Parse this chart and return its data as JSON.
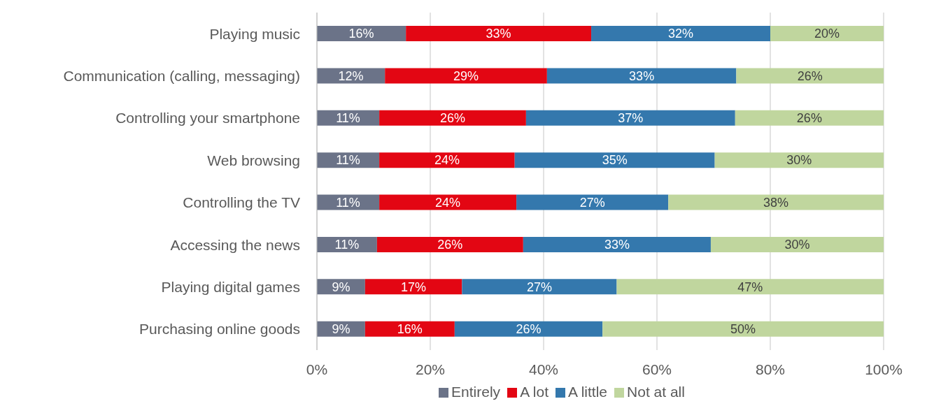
{
  "chart_data": {
    "type": "bar",
    "orientation": "horizontal",
    "stacked": true,
    "categories": [
      "Playing music",
      "Communication (calling, messaging)",
      "Controlling your smartphone",
      "Web browsing",
      "Controlling the TV",
      "Accessing the news",
      "Playing digital games",
      "Purchasing online goods"
    ],
    "series": [
      {
        "name": "Entirely",
        "color": "#6b7388",
        "values": [
          15.7,
          12,
          11,
          11,
          11,
          10.6,
          8.5,
          8.5
        ],
        "value_labels": [
          "16%",
          "12%",
          "11%",
          "11%",
          "11%",
          "11%",
          "9%",
          "9%"
        ]
      },
      {
        "name": "A lot",
        "color": "#e30613",
        "values": [
          32.7,
          28.6,
          25.9,
          23.9,
          24.2,
          25.8,
          17.1,
          15.8
        ],
        "value_labels": [
          "33%",
          "29%",
          "26%",
          "24%",
          "24%",
          "26%",
          "17%",
          "16%"
        ]
      },
      {
        "name": "A little",
        "color": "#3478ad",
        "values": [
          31.6,
          33.4,
          36.9,
          35.3,
          26.8,
          33.1,
          27.3,
          26.1
        ],
        "value_labels": [
          "32%",
          "33%",
          "37%",
          "35%",
          "27%",
          "33%",
          "27%",
          "26%"
        ]
      },
      {
        "name": "Not at all",
        "color": "#c0d69e",
        "values": [
          20,
          26,
          26.2,
          29.8,
          38,
          30.5,
          47.1,
          49.6
        ],
        "value_labels": [
          "20%",
          "26%",
          "26%",
          "30%",
          "38%",
          "30%",
          "47%",
          "50%"
        ]
      }
    ],
    "xlim": [
      0,
      100
    ],
    "xticks": [
      {
        "value": 0,
        "label": "0%"
      },
      {
        "value": 20,
        "label": "20%"
      },
      {
        "value": 40,
        "label": "40%"
      },
      {
        "value": 60,
        "label": "60%"
      },
      {
        "value": 80,
        "label": "80%"
      },
      {
        "value": 100,
        "label": "100%"
      }
    ],
    "grid": "x",
    "legend": "bottom"
  }
}
